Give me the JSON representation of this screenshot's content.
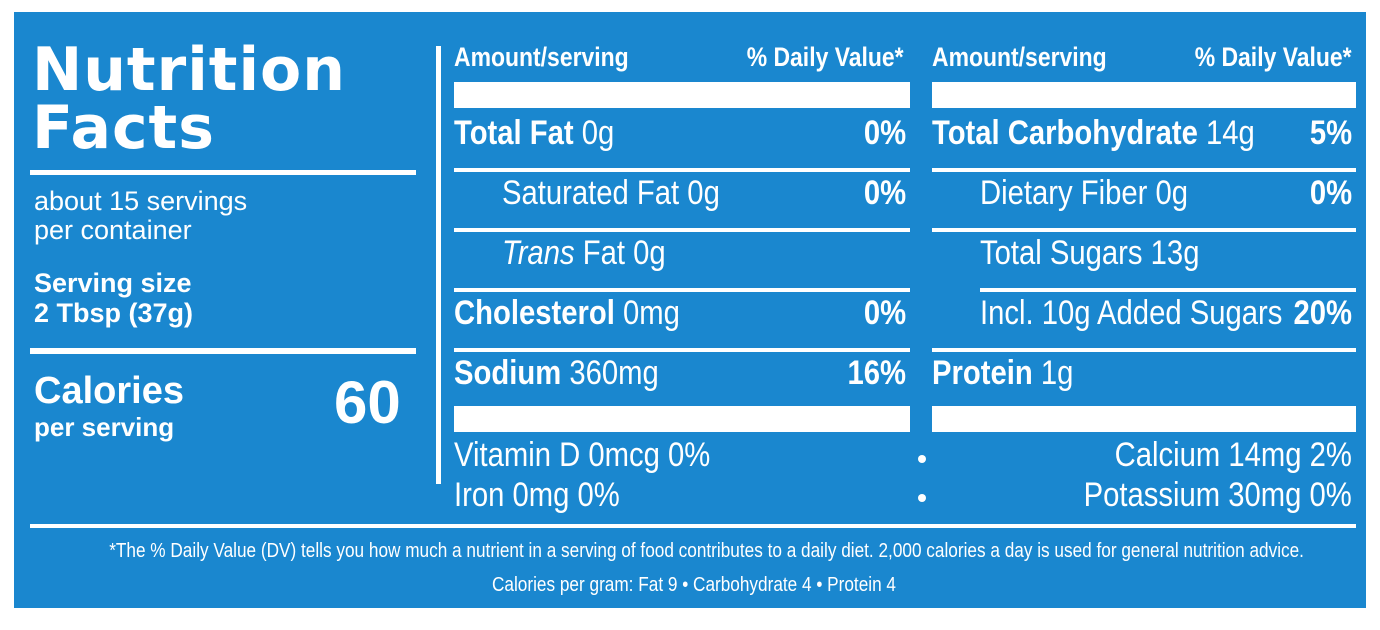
{
  "header": {
    "title_line1": "Nutrition",
    "title_line2": "Facts",
    "servings_line1": "about 15 servings",
    "servings_line2": "per container",
    "serving_size_label": "Serving size",
    "serving_size_value": "2 Tbsp (37g)",
    "calories_label": "Calories",
    "calories_sub": "per serving",
    "calories_value": "60"
  },
  "columns": {
    "amount_label": "Amount/serving",
    "dv_label": "% Daily Value*"
  },
  "left_nutrients": [
    {
      "name": "Total Fat",
      "amount": "0g",
      "dv": "0%"
    },
    {
      "name": "Saturated Fat",
      "amount": "0g",
      "dv": "0%"
    },
    {
      "name_italic": "Trans",
      "name": "Fat",
      "amount": "0g"
    },
    {
      "name": "Cholesterol",
      "amount": "0mg",
      "dv": "0%"
    },
    {
      "name": "Sodium",
      "amount": "360mg",
      "dv": "16%"
    }
  ],
  "right_nutrients": [
    {
      "name": "Total Carbohydrate",
      "amount": "14g",
      "dv": "5%"
    },
    {
      "name": "Dietary Fiber",
      "amount": "0g",
      "dv": "0%"
    },
    {
      "name": "Total Sugars",
      "amount": "13g"
    },
    {
      "name": "Incl. 10g Added Sugars",
      "dv": "20%"
    },
    {
      "name": "Protein",
      "amount": "1g"
    }
  ],
  "vitamins": {
    "vitamin_d": "Vitamin D 0mcg 0%",
    "iron": "Iron 0mg 0%",
    "calcium": "Calcium 14mg 2%",
    "potassium": "Potassium 30mg 0%"
  },
  "footnote": {
    "line1": "*The % Daily Value (DV) tells you how much a nutrient in a serving of food contributes to a daily diet. 2,000 calories a day is used for general nutrition advice.",
    "line2": "Calories per gram: Fat 9  •  Carbohydrate 4  •  Protein 4"
  },
  "colors": {
    "background": "#1a87cf",
    "text": "#ffffff"
  }
}
